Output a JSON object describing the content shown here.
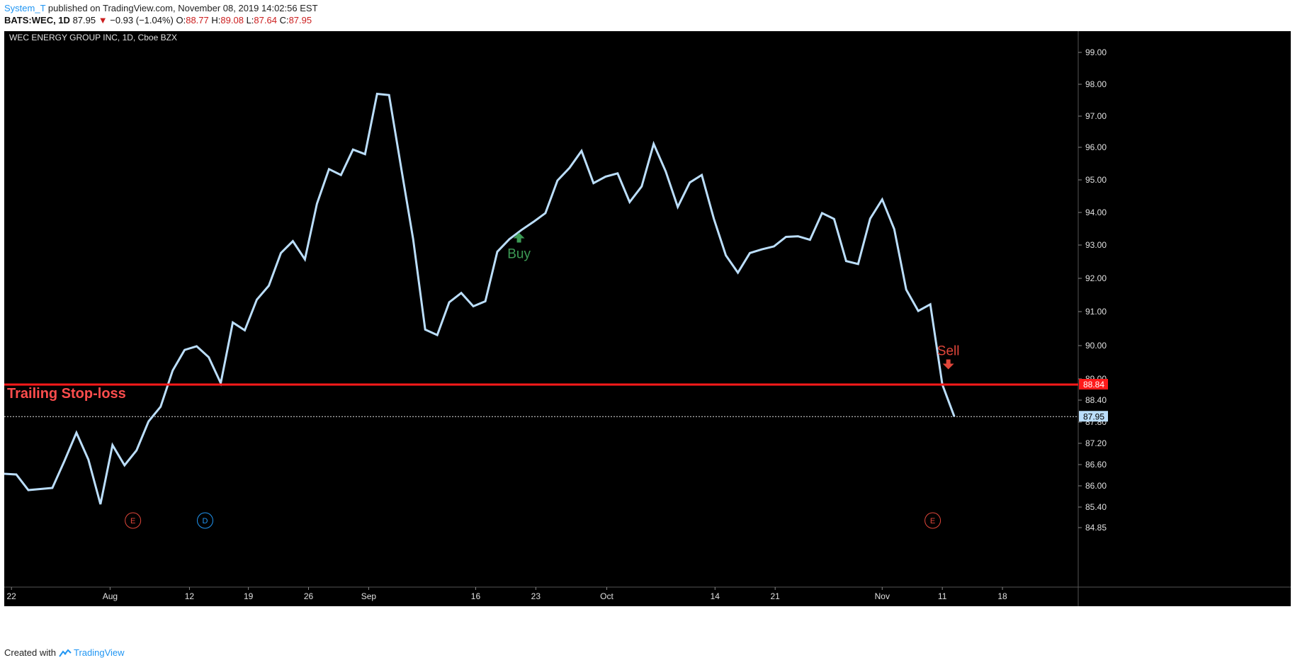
{
  "header": {
    "author": "System_T",
    "published": " published on TradingView.com, November 08, 2019 14:02:56 EST",
    "symbol_line": "BATS:WEC, 1D",
    "last": "87.95",
    "change": "−0.93 (−1.04%)",
    "o_label": "O:",
    "o_value": "88.77",
    "h_label": "H:",
    "h_value": "89.08",
    "l_label": "L:",
    "l_value": "87.64",
    "c_label": "C:",
    "c_value": "87.95",
    "down_arrow": "▼"
  },
  "footer": {
    "created_with": "Created with",
    "brand": "TradingView"
  },
  "chart_data": {
    "type": "line",
    "title": "WEC ENERGY GROUP INC, 1D, Cboe BZX",
    "colors": {
      "background": "#000000",
      "line": "#bbdefb",
      "stop_line": "#ff1a1a",
      "buy": "#3c9a55",
      "sell": "#e0463a",
      "earnings": "#e0463a",
      "dividend": "#2196f3",
      "axis_text": "#e0e0e0"
    },
    "x_ticks": [
      "22",
      "Aug",
      "12",
      "19",
      "26",
      "Sep",
      "16",
      "23",
      "Oct",
      "14",
      "21",
      "Nov",
      "11",
      "18"
    ],
    "x_tick_positions": [
      0.6,
      8.8,
      15.4,
      20.3,
      25.3,
      30.3,
      39.2,
      44.2,
      50.1,
      59.1,
      64.1,
      73.0,
      78.0,
      83.0
    ],
    "x_range": [
      0,
      89.3
    ],
    "y_ticks": [
      {
        "label": "99.00",
        "v": 99.0
      },
      {
        "label": "98.00",
        "v": 98.0
      },
      {
        "label": "97.00",
        "v": 97.0
      },
      {
        "label": "96.00",
        "v": 96.0
      },
      {
        "label": "95.00",
        "v": 95.0
      },
      {
        "label": "94.00",
        "v": 94.0
      },
      {
        "label": "93.00",
        "v": 93.0
      },
      {
        "label": "92.00",
        "v": 92.0
      },
      {
        "label": "91.00",
        "v": 91.0
      },
      {
        "label": "90.00",
        "v": 90.0
      },
      {
        "label": "89.00",
        "v": 89.0
      },
      {
        "label": "88.40",
        "v": 88.4
      },
      {
        "label": "87.80",
        "v": 87.8
      },
      {
        "label": "87.20",
        "v": 87.2
      },
      {
        "label": "86.60",
        "v": 86.6
      },
      {
        "label": "86.00",
        "v": 86.0
      },
      {
        "label": "85.40",
        "v": 85.4
      },
      {
        "label": "84.85",
        "v": 84.85
      }
    ],
    "ylim": [
      84.52,
      99.2
    ],
    "series": [
      {
        "x": [
          0,
          1,
          2,
          3,
          4,
          5,
          6,
          7,
          8,
          9,
          10,
          11,
          12,
          13,
          14,
          15,
          16,
          17,
          18,
          19,
          20,
          21,
          22,
          23,
          24,
          25,
          26,
          27,
          28,
          29,
          30,
          31,
          32,
          33,
          34,
          35,
          36,
          37,
          38,
          39,
          40,
          41,
          42,
          43,
          44,
          45,
          46,
          47,
          48,
          49,
          50,
          51,
          52,
          53,
          54,
          55,
          56,
          57,
          58,
          59,
          60,
          61,
          62,
          63,
          64,
          65,
          66,
          67,
          68,
          69,
          70,
          71,
          72,
          73,
          74,
          75,
          76,
          77,
          78,
          79
        ],
        "values": [
          86.34,
          86.32,
          85.88,
          85.91,
          85.94,
          86.7,
          87.5,
          86.74,
          85.48,
          87.15,
          86.58,
          87.0,
          87.82,
          88.22,
          89.25,
          89.87,
          89.98,
          89.65,
          88.88,
          90.68,
          90.45,
          91.36,
          91.78,
          92.76,
          93.12,
          92.57,
          94.27,
          95.33,
          95.15,
          95.93,
          95.79,
          97.7,
          97.66,
          95.38,
          93.18,
          90.47,
          90.31,
          91.28,
          91.56,
          91.16,
          91.31,
          92.8,
          93.18,
          93.46,
          93.71,
          93.98,
          94.98,
          95.37,
          95.89,
          94.9,
          95.1,
          95.2,
          94.32,
          94.8,
          96.11,
          95.26,
          94.17,
          94.92,
          95.15,
          93.81,
          92.69,
          92.17,
          92.76,
          92.87,
          92.96,
          93.25,
          93.27,
          93.16,
          93.98,
          93.8,
          92.52,
          92.43,
          93.81,
          94.4,
          93.49,
          91.66,
          91.02,
          91.22,
          88.84,
          87.95
        ]
      }
    ],
    "current_price": {
      "label": "87.95",
      "value": 87.95
    },
    "stop_loss": {
      "label": "88.84",
      "value": 88.84,
      "text": "Trailing Stop-loss"
    },
    "signals": [
      {
        "text": "Buy",
        "x": 42.8,
        "value": 93.12,
        "kind": "buy"
      },
      {
        "text": "Sell",
        "x": 78.5,
        "value": 89.5,
        "kind": "sell"
      }
    ],
    "events": [
      {
        "letter": "E",
        "x": 10.7,
        "kind": "earnings"
      },
      {
        "letter": "D",
        "x": 16.7,
        "kind": "dividend"
      },
      {
        "letter": "E",
        "x": 77.2,
        "kind": "earnings"
      }
    ]
  }
}
